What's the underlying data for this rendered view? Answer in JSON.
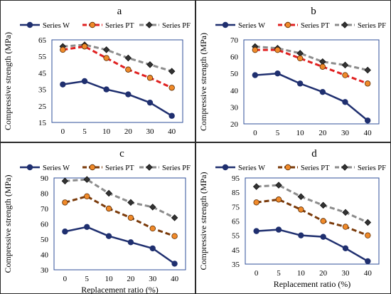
{
  "chart_data": [
    {
      "type": "line",
      "title": "a",
      "xlabel": "",
      "ylabel": "Compressive strength (MPa)",
      "categories": [
        "0",
        "5",
        "10",
        "20",
        "30",
        "40"
      ],
      "ylim": [
        15,
        65
      ],
      "yticks": [
        15,
        25,
        35,
        45,
        55,
        65
      ],
      "grid": false,
      "legend": "top",
      "series": [
        {
          "name": "Series W",
          "values": [
            38,
            40,
            35,
            32,
            27,
            19
          ],
          "color": "#1f2f6f",
          "style": "solid",
          "marker": "circle"
        },
        {
          "name": "Series PT",
          "values": [
            59,
            61,
            54,
            47,
            42,
            36
          ],
          "color": "#e02020",
          "style": "dashed",
          "marker": "circle",
          "marker_fill": "#f08a2a"
        },
        {
          "name": "Series PF",
          "values": [
            61,
            62,
            59,
            54,
            50,
            46
          ],
          "color": "#8c8c8c",
          "style": "dashed",
          "marker": "diamond"
        }
      ]
    },
    {
      "type": "line",
      "title": "b",
      "xlabel": "",
      "ylabel": "Compressive strength (MPa)",
      "categories": [
        "0",
        "5",
        "10",
        "20",
        "30",
        "40"
      ],
      "ylim": [
        20,
        70
      ],
      "yticks": [
        20,
        30,
        40,
        50,
        60,
        70
      ],
      "grid": false,
      "legend": "top",
      "series": [
        {
          "name": "Series W",
          "values": [
            49,
            50,
            44,
            39,
            33,
            22
          ],
          "color": "#1f2f6f",
          "style": "solid",
          "marker": "circle"
        },
        {
          "name": "Series PT",
          "values": [
            64,
            64,
            59,
            54,
            49,
            44
          ],
          "color": "#e02020",
          "style": "dashed",
          "marker": "circle",
          "marker_fill": "#f08a2a"
        },
        {
          "name": "Series PF",
          "values": [
            66,
            65,
            62,
            57,
            55,
            52
          ],
          "color": "#8c8c8c",
          "style": "dashed",
          "marker": "diamond"
        }
      ]
    },
    {
      "type": "line",
      "title": "c",
      "xlabel": "Replacement ratio (%)",
      "ylabel": "Compressive strength (MPa)",
      "categories": [
        "0",
        "5",
        "10",
        "20",
        "30",
        "40"
      ],
      "ylim": [
        30,
        90
      ],
      "yticks": [
        30,
        40,
        50,
        60,
        70,
        80,
        90
      ],
      "grid": false,
      "legend": "top",
      "series": [
        {
          "name": "Series W",
          "values": [
            55,
            58,
            52,
            48,
            44,
            34
          ],
          "color": "#1f2f6f",
          "style": "solid",
          "marker": "circle"
        },
        {
          "name": "Series PT",
          "values": [
            74,
            78,
            70,
            64,
            57,
            52
          ],
          "color": "#7a3a0a",
          "style": "dashed",
          "marker": "circle",
          "marker_fill": "#f08a2a"
        },
        {
          "name": "Series PF",
          "values": [
            88,
            89,
            80,
            74,
            71,
            64
          ],
          "color": "#8c8c8c",
          "style": "dashed",
          "marker": "diamond"
        }
      ]
    },
    {
      "type": "line",
      "title": "d",
      "xlabel": "Replacement ratio (%)",
      "ylabel": "Compressive strength (MPa)",
      "categories": [
        "0",
        "5",
        "10",
        "20",
        "30",
        "40"
      ],
      "ylim": [
        35,
        95
      ],
      "yticks": [
        35,
        45,
        55,
        65,
        75,
        85,
        95
      ],
      "grid": false,
      "legend": "top",
      "series": [
        {
          "name": "Series W",
          "values": [
            58,
            59,
            55,
            54,
            46,
            37
          ],
          "color": "#1f2f6f",
          "style": "solid",
          "marker": "circle"
        },
        {
          "name": "Series PT",
          "values": [
            78,
            80,
            73,
            65,
            61,
            55
          ],
          "color": "#7a3a0a",
          "style": "dashed",
          "marker": "circle",
          "marker_fill": "#f08a2a"
        },
        {
          "name": "Series PF",
          "values": [
            89,
            90,
            82,
            76,
            71,
            64
          ],
          "color": "#8c8c8c",
          "style": "dashed",
          "marker": "diamond"
        }
      ]
    }
  ]
}
